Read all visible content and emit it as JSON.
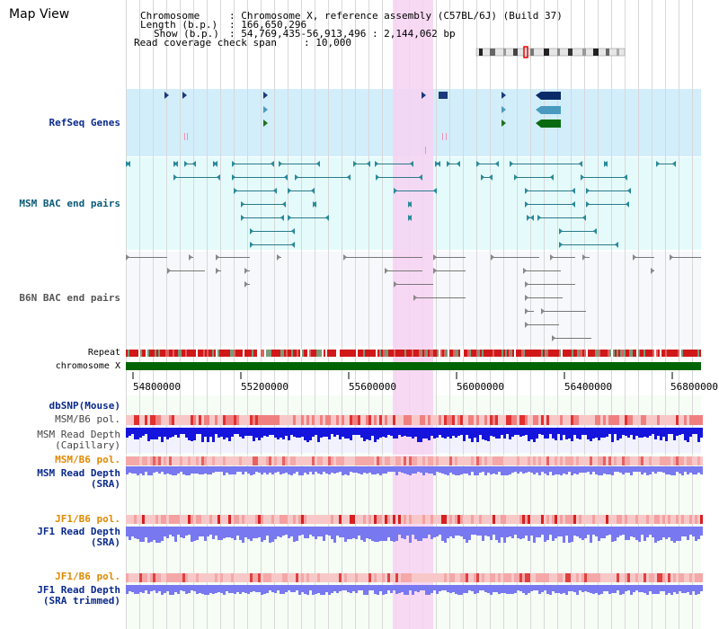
{
  "page": {
    "title": "Map View"
  },
  "header": {
    "chromosome_label": "Chromosome",
    "chromosome_value": ": Chromosome X, reference assembly (C57BL/6J) (Build 37)",
    "length_label": "Length (b.p.)",
    "length_value": ": 166,650,296",
    "show_label": "Show (b.p.)",
    "show_value": ": 54,769,435-56,913,496 : 2,144,062 bp",
    "coverage_label": "Read coverage check span",
    "coverage_value": ": 10,000"
  },
  "tracks": {
    "refseq": "RefSeq Genes",
    "msm_bac": "MSM BAC end pairs",
    "b6n_bac": "B6N BAC end pairs",
    "repeat": "Repeat",
    "chromosome": "chromosome X",
    "dbsnp": "dbSNP(Mouse)",
    "msm_pol_1": "MSM/B6 pol.",
    "msm_depth_cap_1": "MSM Read Depth",
    "msm_depth_cap_2": "(Capillary)",
    "msm_pol_2": "MSM/B6 pol.",
    "msm_depth_sra_1": "MSM Read Depth",
    "msm_depth_sra_2": "(SRA)",
    "jf1_pol_1": "JF1/B6 pol.",
    "jf1_depth_sra_1": "JF1 Read Depth",
    "jf1_depth_sra_2": "(SRA)",
    "jf1_pol_2": "JF1/B6 pol.",
    "jf1_depth_trim_1": "JF1 Read Depth",
    "jf1_depth_trim_2": "(SRA trimmed)"
  },
  "axis": {
    "ticks": [
      "54800000",
      "55200000",
      "55600000",
      "56000000",
      "56400000",
      "56800000"
    ]
  },
  "colors": {
    "highlight": "#f7d2f2",
    "refseq_bg": "#d2eefb",
    "msm_bg": "#e5fbfb",
    "b6n_bg": "#f6f8fb",
    "chromosome": "#006400",
    "depth_msm_cap": "#1414dc",
    "depth_sra": "#7878f0",
    "pol": "#f0a0a0"
  }
}
